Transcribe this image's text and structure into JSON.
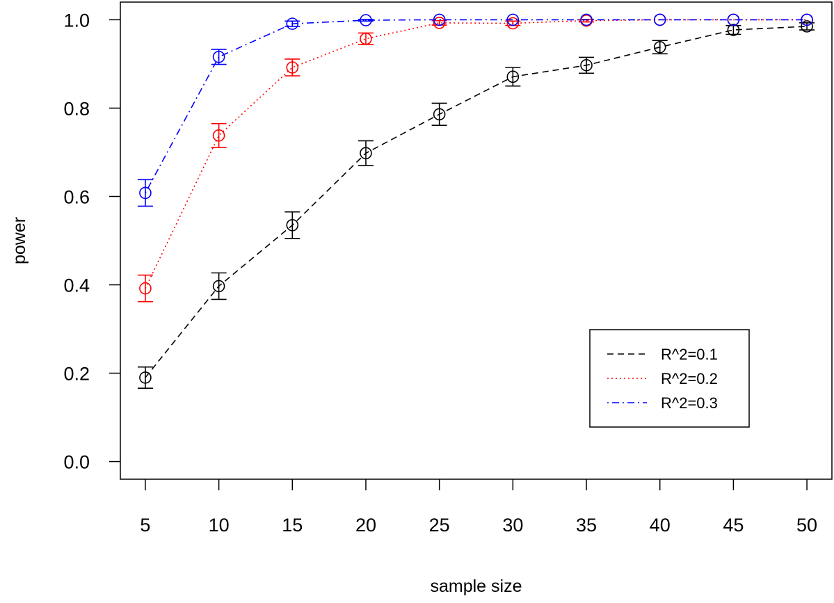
{
  "chart_data": {
    "type": "line",
    "title": "",
    "xlabel": "sample size",
    "ylabel": "power",
    "xlim": [
      3.3,
      51.7
    ],
    "ylim": [
      -0.04,
      1.04
    ],
    "x": [
      5,
      10,
      15,
      20,
      25,
      30,
      35,
      40,
      45,
      50
    ],
    "x_tick_labels": [
      "5",
      "10",
      "15",
      "20",
      "25",
      "30",
      "35",
      "40",
      "45",
      "50"
    ],
    "y_ticks": [
      0.0,
      0.2,
      0.4,
      0.6,
      0.8,
      1.0
    ],
    "y_tick_labels": [
      "0.0",
      "0.2",
      "0.4",
      "0.6",
      "0.8",
      "1.0"
    ],
    "grid": false,
    "legend_position": "bottom-right",
    "series": [
      {
        "name": "R^2=0.1",
        "color": "#000000",
        "linestyle": "dashed",
        "values": [
          0.19,
          0.397,
          0.535,
          0.698,
          0.786,
          0.871,
          0.897,
          0.938,
          0.977,
          0.985
        ],
        "error": [
          0.024,
          0.03,
          0.03,
          0.028,
          0.025,
          0.021,
          0.018,
          0.015,
          0.01,
          0.008
        ]
      },
      {
        "name": "R^2=0.2",
        "color": "#ff0000",
        "linestyle": "dotted",
        "values": [
          0.392,
          0.738,
          0.892,
          0.957,
          0.993,
          0.992,
          0.998,
          1.0,
          1.0,
          1.0
        ],
        "error": [
          0.03,
          0.027,
          0.019,
          0.013,
          0.005,
          0.005,
          0.003,
          0.0,
          0.0,
          0.0
        ]
      },
      {
        "name": "R^2=0.3",
        "color": "#0000ff",
        "linestyle": "dashdot",
        "values": [
          0.608,
          0.916,
          0.991,
          0.999,
          1.0,
          1.0,
          1.0,
          1.0,
          1.0,
          1.0
        ],
        "error": [
          0.03,
          0.017,
          0.006,
          0.002,
          0.0,
          0.0,
          0.0,
          0.0,
          0.0,
          0.0
        ]
      }
    ]
  }
}
